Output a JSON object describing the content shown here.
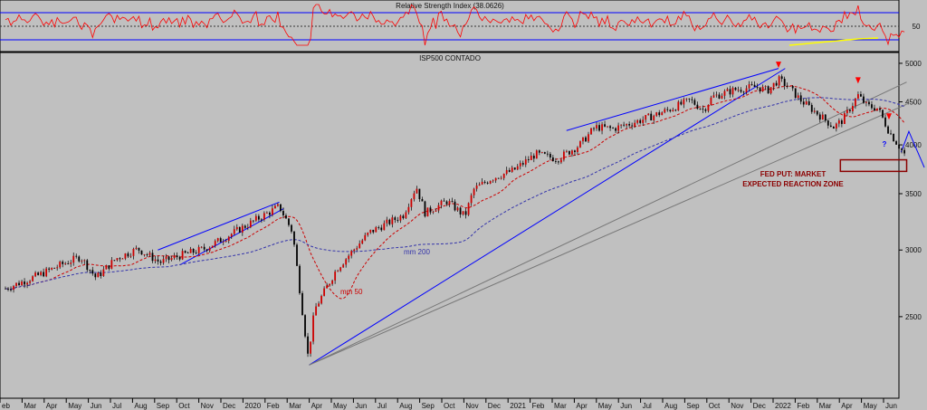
{
  "chart_data": [
    {
      "type": "line",
      "title": "Relative Strength Index (38.0626)",
      "ytick_labels": [
        "50"
      ],
      "upper_band": 70,
      "mid_line": 50,
      "lower_band": 30,
      "colors": {
        "rsi": "#ff0000",
        "bands": "#0000ff",
        "trend": "#ffff00"
      }
    },
    {
      "type": "candlestick",
      "title": "ISP500 CONTADO",
      "y_scale": "log",
      "ylim": [
        2000,
        5150
      ],
      "ytick_labels": [
        "5000",
        "4500",
        "4000",
        "3500",
        "3000",
        "2500"
      ],
      "ytick_values": [
        5000,
        4500,
        4000,
        3500,
        3000,
        2500
      ],
      "month_labels": [
        "eb",
        "Mar",
        "Apr",
        "May",
        "Jun",
        "Jul",
        "Aug",
        "Sep",
        "Oct",
        "Nov",
        "Dec",
        "2020",
        "Feb",
        "Mar",
        "Apr",
        "May",
        "Jun",
        "Jul",
        "Aug",
        "Sep",
        "Oct",
        "Nov",
        "Dec",
        "2021",
        "Feb",
        "Mar",
        "Apr",
        "May",
        "Jun",
        "Jul",
        "Aug",
        "Sep",
        "Oct",
        "Nov",
        "Dec",
        "2022",
        "Feb",
        "Mar",
        "Apr",
        "May",
        "Jun"
      ],
      "price_anchors": [
        {
          "t": 0,
          "v": 2700
        },
        {
          "t": 1.5,
          "v": 2800
        },
        {
          "t": 2.5,
          "v": 2880
        },
        {
          "t": 3.4,
          "v": 2945
        },
        {
          "t": 4.1,
          "v": 2780
        },
        {
          "t": 5.0,
          "v": 2930
        },
        {
          "t": 6.0,
          "v": 3010
        },
        {
          "t": 7.0,
          "v": 2900
        },
        {
          "t": 8.0,
          "v": 2960
        },
        {
          "t": 9.0,
          "v": 3010
        },
        {
          "t": 10.0,
          "v": 3110
        },
        {
          "t": 11.0,
          "v": 3220
        },
        {
          "t": 12.4,
          "v": 3380
        },
        {
          "t": 13.0,
          "v": 3150
        },
        {
          "t": 13.7,
          "v": 2240
        },
        {
          "t": 14.0,
          "v": 2550
        },
        {
          "t": 15.0,
          "v": 2850
        },
        {
          "t": 16.0,
          "v": 3050
        },
        {
          "t": 16.5,
          "v": 3150
        },
        {
          "t": 17.0,
          "v": 3200
        },
        {
          "t": 18.0,
          "v": 3300
        },
        {
          "t": 18.6,
          "v": 3570
        },
        {
          "t": 19.0,
          "v": 3320
        },
        {
          "t": 20.0,
          "v": 3430
        },
        {
          "t": 20.8,
          "v": 3290
        },
        {
          "t": 21.2,
          "v": 3540
        },
        {
          "t": 22.0,
          "v": 3650
        },
        {
          "t": 23.0,
          "v": 3730
        },
        {
          "t": 24.0,
          "v": 3900
        },
        {
          "t": 25.0,
          "v": 3850
        },
        {
          "t": 26.0,
          "v": 4000
        },
        {
          "t": 26.7,
          "v": 4200
        },
        {
          "t": 27.5,
          "v": 4180
        },
        {
          "t": 28.4,
          "v": 4250
        },
        {
          "t": 29.0,
          "v": 4300
        },
        {
          "t": 30.0,
          "v": 4400
        },
        {
          "t": 31.0,
          "v": 4520
        },
        {
          "t": 31.6,
          "v": 4400
        },
        {
          "t": 32.0,
          "v": 4560
        },
        {
          "t": 33.0,
          "v": 4650
        },
        {
          "t": 34.0,
          "v": 4690
        },
        {
          "t": 34.5,
          "v": 4640
        },
        {
          "t": 35.0,
          "v": 4780
        },
        {
          "t": 35.4,
          "v": 4700
        },
        {
          "t": 36.0,
          "v": 4520
        },
        {
          "t": 36.8,
          "v": 4350
        },
        {
          "t": 37.5,
          "v": 4200
        },
        {
          "t": 37.9,
          "v": 4280
        },
        {
          "t": 38.6,
          "v": 4580
        },
        {
          "t": 39.0,
          "v": 4450
        },
        {
          "t": 39.5,
          "v": 4420
        },
        {
          "t": 40.0,
          "v": 4150
        },
        {
          "t": 40.7,
          "v": 3900
        }
      ],
      "series": [
        {
          "name": "mm 200",
          "color": "#3333aa"
        },
        {
          "name": "mm 50",
          "color": "#cc0000"
        }
      ],
      "annotations": [
        {
          "text": "FED PUT: MARKET",
          "color": "#8b0000"
        },
        {
          "text": "EXPECTED REACTION ZONE",
          "color": "#8b0000"
        },
        {
          "text": "?",
          "color": "#0000ff"
        }
      ],
      "reaction_zone": {
        "low": 3720,
        "high": 3840
      },
      "arrow_marks_t": [
        35.0,
        38.6,
        40.0
      ]
    }
  ]
}
